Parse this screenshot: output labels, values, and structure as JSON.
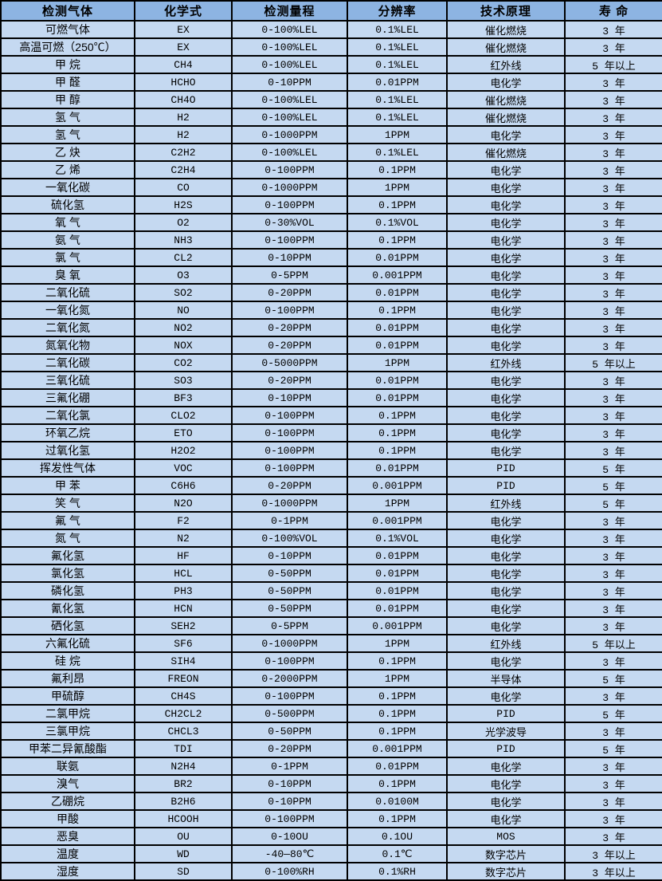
{
  "table": {
    "columns": [
      "检测气体",
      "化学式",
      "检测量程",
      "分辨率",
      "技术原理",
      "寿 命"
    ],
    "rows": [
      [
        "可燃气体",
        "EX",
        "0-100%LEL",
        "0.1%LEL",
        "催化燃烧",
        "3 年"
      ],
      [
        "高温可燃（250℃）",
        "EX",
        "0-100%LEL",
        "0.1%LEL",
        "催化燃烧",
        "3 年"
      ],
      [
        "甲 烷",
        "CH4",
        "0-100%LEL",
        "0.1%LEL",
        "红外线",
        "5 年以上"
      ],
      [
        "甲 醛",
        "HCHO",
        "0-10PPM",
        "0.01PPM",
        "电化学",
        "3 年"
      ],
      [
        "甲 醇",
        "CH4O",
        "0-100%LEL",
        "0.1%LEL",
        "催化燃烧",
        "3 年"
      ],
      [
        "氢 气",
        "H2",
        "0-100%LEL",
        "0.1%LEL",
        "催化燃烧",
        "3 年"
      ],
      [
        "氢 气",
        "H2",
        "0-1000PPM",
        "1PPM",
        "电化学",
        "3 年"
      ],
      [
        "乙 炔",
        "C2H2",
        "0-100%LEL",
        "0.1%LEL",
        "催化燃烧",
        "3 年"
      ],
      [
        "乙 烯",
        "C2H4",
        "0-100PPM",
        "0.1PPM",
        "电化学",
        "3 年"
      ],
      [
        "一氧化碳",
        "CO",
        "0-1000PPM",
        "1PPM",
        "电化学",
        "3 年"
      ],
      [
        "硫化氢",
        "H2S",
        "0-100PPM",
        "0.1PPM",
        "电化学",
        "3 年"
      ],
      [
        "氧 气",
        "O2",
        "0-30%VOL",
        "0.1%VOL",
        "电化学",
        "3 年"
      ],
      [
        "氨 气",
        "NH3",
        "0-100PPM",
        "0.1PPM",
        "电化学",
        "3 年"
      ],
      [
        "氯 气",
        "CL2",
        "0-10PPM",
        "0.01PPM",
        "电化学",
        "3 年"
      ],
      [
        "臭 氧",
        "O3",
        "0-5PPM",
        "0.001PPM",
        "电化学",
        "3 年"
      ],
      [
        "二氧化硫",
        "SO2",
        "0-20PPM",
        "0.01PPM",
        "电化学",
        "3 年"
      ],
      [
        "一氧化氮",
        "NO",
        "0-100PPM",
        "0.1PPM",
        "电化学",
        "3 年"
      ],
      [
        "二氧化氮",
        "NO2",
        "0-20PPM",
        "0.01PPM",
        "电化学",
        "3 年"
      ],
      [
        "氮氧化物",
        "NOX",
        "0-20PPM",
        "0.01PPM",
        "电化学",
        "3 年"
      ],
      [
        "二氧化碳",
        "CO2",
        "0-5000PPM",
        "1PPM",
        "红外线",
        "5 年以上"
      ],
      [
        "三氧化硫",
        "SO3",
        "0-20PPM",
        "0.01PPM",
        "电化学",
        "3 年"
      ],
      [
        "三氟化硼",
        "BF3",
        "0-10PPM",
        "0.01PPM",
        "电化学",
        "3 年"
      ],
      [
        "二氧化氯",
        "CLO2",
        "0-100PPM",
        "0.1PPM",
        "电化学",
        "3 年"
      ],
      [
        "环氧乙烷",
        "ETO",
        "0-100PPM",
        "0.1PPM",
        "电化学",
        "3 年"
      ],
      [
        "过氧化氢",
        "H2O2",
        "0-100PPM",
        "0.1PPM",
        "电化学",
        "3 年"
      ],
      [
        "挥发性气体",
        "VOC",
        "0-100PPM",
        "0.01PPM",
        "PID",
        "5 年"
      ],
      [
        "甲 苯",
        "C6H6",
        "0-20PPM",
        "0.001PPM",
        "PID",
        "5 年"
      ],
      [
        "笑 气",
        "N2O",
        "0-1000PPM",
        "1PPM",
        "红外线",
        "5 年"
      ],
      [
        "氟 气",
        "F2",
        "0-1PPM",
        "0.001PPM",
        "电化学",
        "3 年"
      ],
      [
        "氮 气",
        "N2",
        "0-100%VOL",
        "0.1%VOL",
        "电化学",
        "3 年"
      ],
      [
        "氟化氢",
        "HF",
        "0-10PPM",
        "0.01PPM",
        "电化学",
        "3 年"
      ],
      [
        "氯化氢",
        "HCL",
        "0-50PPM",
        "0.01PPM",
        "电化学",
        "3 年"
      ],
      [
        "磷化氢",
        "PH3",
        "0-50PPM",
        "0.01PPM",
        "电化学",
        "3 年"
      ],
      [
        "氰化氢",
        "HCN",
        "0-50PPM",
        "0.01PPM",
        "电化学",
        "3 年"
      ],
      [
        "硒化氢",
        "SEH2",
        "0-5PPM",
        "0.001PPM",
        "电化学",
        "3 年"
      ],
      [
        "六氟化硫",
        "SF6",
        "0-1000PPM",
        "1PPM",
        "红外线",
        "5 年以上"
      ],
      [
        "硅 烷",
        "SIH4",
        "0-100PPM",
        "0.1PPM",
        "电化学",
        "3 年"
      ],
      [
        "氟利昂",
        "FREON",
        "0-2000PPM",
        "1PPM",
        "半导体",
        "5 年"
      ],
      [
        "甲硫醇",
        "CH4S",
        "0-100PPM",
        "0.1PPM",
        "电化学",
        "3 年"
      ],
      [
        "二氯甲烷",
        "CH2CL2",
        "0-500PPM",
        "0.1PPM",
        "PID",
        "5 年"
      ],
      [
        "三氯甲烷",
        "CHCL3",
        "0-50PPM",
        "0.1PPM",
        "光学波导",
        "3 年"
      ],
      [
        "甲苯二异氰酸酯",
        "TDI",
        "0-20PPM",
        "0.001PPM",
        "PID",
        "5 年"
      ],
      [
        "联氨",
        "N2H4",
        "0-1PPM",
        "0.01PPM",
        "电化学",
        "3 年"
      ],
      [
        "溴气",
        "BR2",
        "0-10PPM",
        "0.1PPM",
        "电化学",
        "3 年"
      ],
      [
        "乙硼烷",
        "B2H6",
        "0-10PPM",
        "0.0100M",
        "电化学",
        "3 年"
      ],
      [
        "甲酸",
        "HCOOH",
        "0-100PPM",
        "0.1PPM",
        "电化学",
        "3 年"
      ],
      [
        "恶臭",
        "OU",
        "0-10OU",
        "0.1OU",
        "MOS",
        "3 年"
      ],
      [
        "温度",
        "WD",
        "-40—80℃",
        "0.1℃",
        "数字芯片",
        "3 年以上"
      ],
      [
        "湿度",
        "SD",
        "0-100%RH",
        "0.1%RH",
        "数字芯片",
        "3 年以上"
      ]
    ]
  },
  "colors": {
    "header_bg": "#8db4e2",
    "row_bg": "#c5d9f1",
    "border": "#000000",
    "text": "#000000"
  }
}
